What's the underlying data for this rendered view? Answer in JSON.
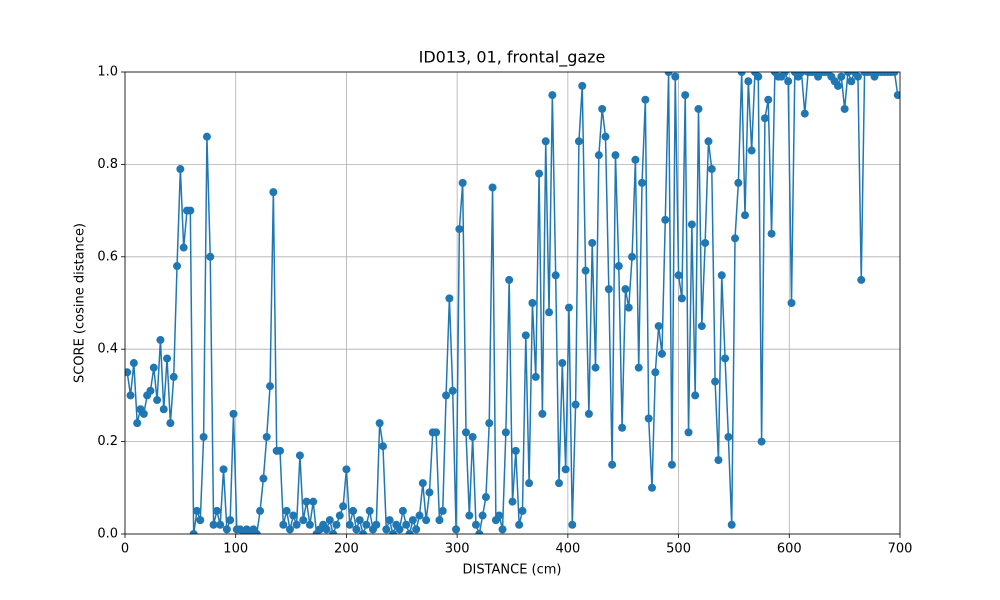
{
  "chart_data": {
    "type": "line",
    "title": "ID013, 01, frontal_gaze",
    "x_label": "DISTANCE (cm)",
    "y_label": "SCORE (cosine distance)",
    "xlim": [
      0,
      700
    ],
    "xticks": [
      0,
      100,
      200,
      300,
      400,
      500,
      600,
      700
    ],
    "ylim": [
      0,
      1
    ],
    "yticks": [
      {
        "value": 0,
        "label": "0.0"
      },
      0.2,
      0.4,
      0.6,
      0.8,
      {
        "value": 1,
        "label": "1.0"
      }
    ],
    "grid": true,
    "markers": true,
    "series": [
      {
        "color": "#1f77b4",
        "x": [
          2,
          5,
          8,
          11,
          14,
          17,
          20,
          23,
          26,
          29,
          32,
          35,
          38,
          41,
          44,
          47,
          50,
          53,
          56,
          59,
          62,
          65,
          68,
          71,
          74,
          77,
          80,
          83,
          86,
          89,
          92,
          95,
          98,
          101,
          104,
          107,
          110,
          113,
          116,
          119,
          122,
          125,
          128,
          131,
          134,
          137,
          140,
          143,
          146,
          149,
          152,
          155,
          158,
          161,
          164,
          167,
          170,
          173,
          176,
          179,
          182,
          185,
          188,
          191,
          194,
          197,
          200,
          203,
          206,
          209,
          212,
          215,
          218,
          221,
          224,
          227,
          230,
          233,
          236,
          239,
          242,
          245,
          248,
          251,
          254,
          257,
          260,
          263,
          266,
          269,
          272,
          275,
          278,
          281,
          284,
          287,
          290,
          293,
          296,
          299,
          302,
          305,
          308,
          311,
          314,
          317,
          320,
          323,
          326,
          329,
          332,
          335,
          338,
          341,
          344,
          347,
          350,
          353,
          356,
          359,
          362,
          365,
          368,
          371,
          374,
          377,
          380,
          383,
          386,
          389,
          392,
          395,
          398,
          401,
          404,
          407,
          410,
          413,
          416,
          419,
          422,
          425,
          428,
          431,
          434,
          437,
          440,
          443,
          446,
          449,
          452,
          455,
          458,
          461,
          464,
          467,
          470,
          473,
          476,
          479,
          482,
          485,
          488,
          491,
          494,
          497,
          500,
          503,
          506,
          509,
          512,
          515,
          518,
          521,
          524,
          527,
          530,
          533,
          536,
          539,
          542,
          545,
          548,
          551,
          554,
          557,
          560,
          563,
          566,
          569,
          572,
          575,
          578,
          581,
          584,
          587,
          590,
          593,
          596,
          599,
          602,
          605,
          608,
          611,
          614,
          617,
          620,
          623,
          626,
          629,
          632,
          635,
          638,
          641,
          644,
          647,
          650,
          653,
          656,
          659,
          662,
          665,
          668,
          671,
          674,
          677,
          680,
          683,
          686,
          689,
          692,
          695,
          698
        ],
        "values": [
          0.35,
          0.3,
          0.37,
          0.24,
          0.27,
          0.26,
          0.3,
          0.31,
          0.36,
          0.29,
          0.42,
          0.27,
          0.38,
          0.24,
          0.34,
          0.58,
          0.79,
          0.62,
          0.7,
          0.7,
          0.0,
          0.05,
          0.03,
          0.21,
          0.86,
          0.6,
          0.02,
          0.05,
          0.02,
          0.14,
          0.01,
          0.03,
          0.26,
          0.01,
          0.01,
          0.0,
          0.01,
          0.0,
          0.01,
          0.0,
          0.05,
          0.12,
          0.21,
          0.32,
          0.74,
          0.18,
          0.18,
          0.02,
          0.05,
          0.01,
          0.04,
          0.02,
          0.17,
          0.03,
          0.07,
          0.02,
          0.07,
          0.0,
          0.01,
          0.02,
          0.01,
          0.03,
          0.0,
          0.02,
          0.04,
          0.06,
          0.14,
          0.02,
          0.05,
          0.01,
          0.03,
          0.0,
          0.02,
          0.05,
          0.01,
          0.02,
          0.24,
          0.19,
          0.01,
          0.03,
          0.0,
          0.02,
          0.01,
          0.05,
          0.02,
          0.0,
          0.03,
          0.01,
          0.04,
          0.11,
          0.03,
          0.09,
          0.22,
          0.22,
          0.03,
          0.05,
          0.3,
          0.51,
          0.31,
          0.01,
          0.66,
          0.76,
          0.22,
          0.04,
          0.21,
          0.02,
          0.0,
          0.04,
          0.08,
          0.24,
          0.75,
          0.03,
          0.04,
          0.01,
          0.22,
          0.55,
          0.07,
          0.18,
          0.02,
          0.05,
          0.43,
          0.11,
          0.5,
          0.34,
          0.78,
          0.26,
          0.85,
          0.48,
          0.95,
          0.56,
          0.11,
          0.37,
          0.14,
          0.49,
          0.02,
          0.28,
          0.85,
          0.97,
          0.57,
          0.26,
          0.63,
          0.36,
          0.82,
          0.92,
          0.86,
          0.53,
          0.15,
          0.82,
          0.58,
          0.23,
          0.53,
          0.49,
          0.6,
          0.81,
          0.36,
          0.76,
          0.94,
          0.25,
          0.1,
          0.35,
          0.45,
          0.39,
          0.68,
          1.0,
          0.15,
          0.99,
          0.56,
          0.51,
          0.95,
          0.22,
          0.67,
          0.3,
          0.92,
          0.45,
          0.63,
          0.85,
          0.79,
          0.33,
          0.16,
          0.56,
          0.38,
          0.21,
          0.02,
          0.64,
          0.76,
          1.0,
          0.69,
          0.98,
          0.83,
          1.0,
          0.99,
          0.2,
          0.9,
          0.94,
          0.65,
          1.0,
          0.99,
          0.99,
          1.0,
          0.98,
          0.5,
          1.0,
          0.99,
          1.0,
          0.91,
          1.0,
          1.0,
          1.0,
          0.99,
          1.0,
          1.0,
          1.0,
          0.99,
          0.98,
          0.97,
          0.99,
          0.92,
          1.0,
          0.98,
          1.0,
          0.99,
          0.55,
          1.0,
          1.0,
          1.0,
          0.99,
          1.0,
          1.0,
          1.0,
          1.0,
          1.0,
          1.0,
          0.95
        ]
      }
    ]
  }
}
